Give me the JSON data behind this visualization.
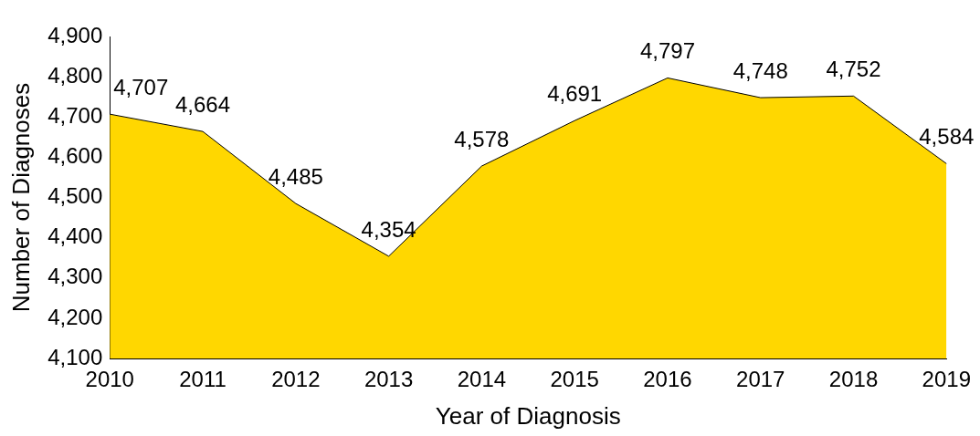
{
  "chart_data": {
    "type": "area",
    "xlabel": "Year of Diagnosis",
    "ylabel": "Number of Diagnoses",
    "categories": [
      "2010",
      "2011",
      "2012",
      "2013",
      "2014",
      "2015",
      "2016",
      "2017",
      "2018",
      "2019"
    ],
    "series": [
      {
        "color": "#ffd700",
        "values": [
          4707,
          4664,
          4485,
          4354,
          4578,
          4691,
          4797,
          4748,
          4752,
          4584
        ],
        "value_labels": [
          "4,707",
          "4,664",
          "4,485",
          "4,354",
          "4,578",
          "4,691",
          "4,797",
          "4,748",
          "4,752",
          "4,584"
        ]
      }
    ],
    "ylim": [
      4100,
      4900
    ],
    "yticks": [
      {
        "value": 4100,
        "label": "4,100"
      },
      {
        "value": 4200,
        "label": "4,200"
      },
      {
        "value": 4300,
        "label": "4,300"
      },
      {
        "value": 4400,
        "label": "4,400"
      },
      {
        "value": 4500,
        "label": "4,500"
      },
      {
        "value": 4600,
        "label": "4,600"
      },
      {
        "value": 4700,
        "label": "4,700"
      },
      {
        "value": 4800,
        "label": "4,800"
      },
      {
        "value": 4900,
        "label": "4,900"
      }
    ],
    "grid": false,
    "legend": false
  }
}
